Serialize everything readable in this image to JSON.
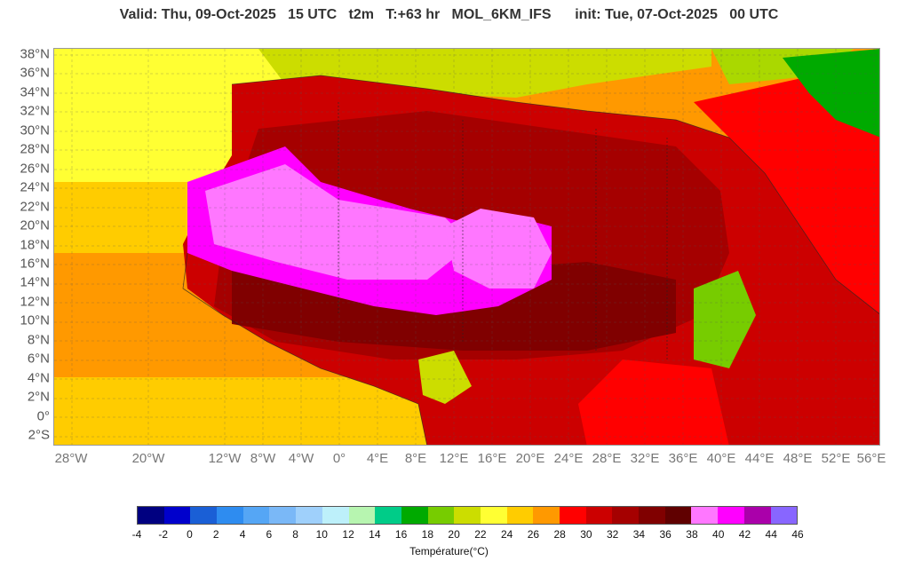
{
  "header": {
    "title": "Valid: Thu, 09-Oct-2025   15 UTC   t2m   T:+63 hr   MOL_6KM_IFS      init: Tue, 07-Oct-2025   00 UTC"
  },
  "map": {
    "lat_labels": [
      "38°N",
      "36°N",
      "34°N",
      "32°N",
      "30°N",
      "28°N",
      "26°N",
      "24°N",
      "22°N",
      "20°N",
      "18°N",
      "16°N",
      "14°N",
      "12°N",
      "10°N",
      "8°N",
      "6°N",
      "4°N",
      "2°N",
      "0°",
      "2°S"
    ],
    "lon_labels": [
      "28°W",
      "20°W",
      "12°W",
      "8°W",
      "4°W",
      "0°",
      "4°E",
      "8°E",
      "12°E",
      "16°E",
      "20°E",
      "24°E",
      "28°E",
      "32°E",
      "36°E",
      "40°E",
      "44°E",
      "48°E",
      "52°E",
      "56°E"
    ],
    "colors": {
      "sea_hot": "#ff9900",
      "sea_warm": "#ffcc00",
      "sea_cool": "#ffff33",
      "land_hot": "#cc0000",
      "land_very_hot": "#a50000",
      "land_extreme": "#800000",
      "land_max": "#ff00ff",
      "land_peak": "#ff77ff",
      "highlands": "#ff0000",
      "mountains": "#00aa00",
      "med_sea": "#ccdd00"
    }
  },
  "colorbar": {
    "colors": [
      "#000080",
      "#0000cc",
      "#1a5fd6",
      "#2e8cf0",
      "#55a6f5",
      "#7ab8f7",
      "#9fd0fb",
      "#bdf0fa",
      "#b7f5b0",
      "#00cc88",
      "#00aa00",
      "#77cc00",
      "#ccdd00",
      "#ffff33",
      "#ffcc00",
      "#ff9900",
      "#ff0000",
      "#cc0000",
      "#a50000",
      "#800000",
      "#600000",
      "#ff77ff",
      "#ff00ff",
      "#aa00aa",
      "#8866ff"
    ],
    "ticks": [
      "-4",
      "-2",
      "0",
      "2",
      "4",
      "6",
      "8",
      "10",
      "12",
      "14",
      "16",
      "18",
      "20",
      "22",
      "24",
      "26",
      "28",
      "30",
      "32",
      "34",
      "36",
      "38",
      "40",
      "42",
      "44",
      "46"
    ],
    "title": "Température(°C)"
  }
}
